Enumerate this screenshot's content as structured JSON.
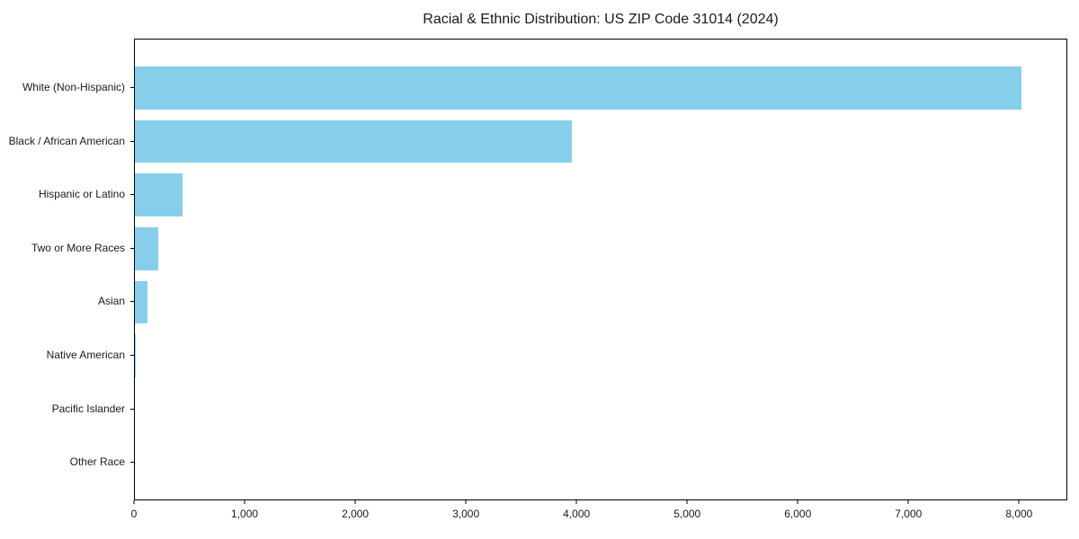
{
  "chart_data": {
    "type": "bar",
    "orientation": "horizontal",
    "title": "Racial & Ethnic Distribution: US ZIP Code 31014 (2024)",
    "categories": [
      "White (Non-Hispanic)",
      "Black / African American",
      "Hispanic or Latino",
      "Two or More Races",
      "Asian",
      "Native American",
      "Pacific Islander",
      "Other Race"
    ],
    "values": [
      8030,
      3960,
      430,
      210,
      110,
      12,
      0,
      0
    ],
    "xlabel": "",
    "ylabel": "",
    "xlim": [
      0,
      8436
    ],
    "x_ticks": [
      0,
      1000,
      2000,
      3000,
      4000,
      5000,
      6000,
      7000,
      8000
    ],
    "x_tick_labels": [
      "0",
      "1,000",
      "2,000",
      "3,000",
      "4,000",
      "5,000",
      "6,000",
      "7,000",
      "8,000"
    ],
    "bar_color": "#87CEEB",
    "grid": false,
    "legend_position": "none"
  }
}
